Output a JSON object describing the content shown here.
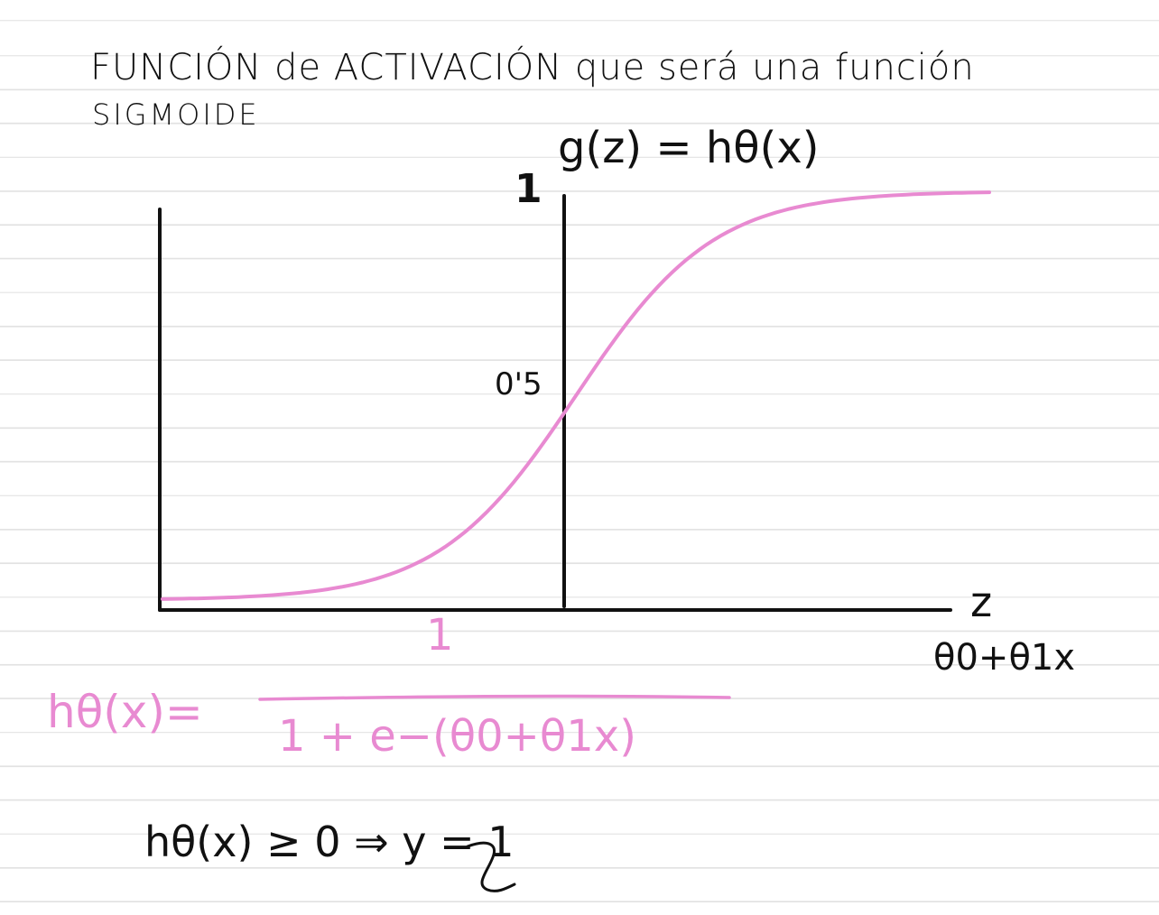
{
  "heading": {
    "line1": "FUNCIÓN de ACTIVACIÓN que será una función",
    "line2": "SIGMOIDE"
  },
  "graph": {
    "function_label": "g(z) = hθ(x)",
    "y_tick_top": "1",
    "y_tick_mid": "0'5",
    "x_axis_label": "z",
    "x_axis_definition": "θ0+θ1x"
  },
  "formula": {
    "lhs": "hθ(x)=",
    "numerator": "1",
    "denominator": "1 + e−(θ0+θ1x)"
  },
  "decision_rule": "hθ(x) ≥ 0 ⇒ y = 1",
  "colors": {
    "ink": "#111111",
    "pink": "#e88ad1",
    "ruling": "#e2e2e2"
  },
  "chart_data": {
    "type": "line",
    "series": [
      {
        "values_description_free": true,
        "x": [
          -6,
          -5,
          -4,
          -3,
          -2,
          -1,
          0,
          1,
          2,
          3,
          4,
          5,
          6
        ],
        "y": [
          0.002,
          0.007,
          0.018,
          0.047,
          0.119,
          0.269,
          0.5,
          0.731,
          0.881,
          0.953,
          0.982,
          0.993,
          0.998
        ]
      }
    ],
    "y_ticks": [
      "1",
      "0'5"
    ],
    "xlabel": "z",
    "ylabel": "g(z) = hθ(x)",
    "ylim": [
      0,
      1
    ],
    "grid": false
  }
}
